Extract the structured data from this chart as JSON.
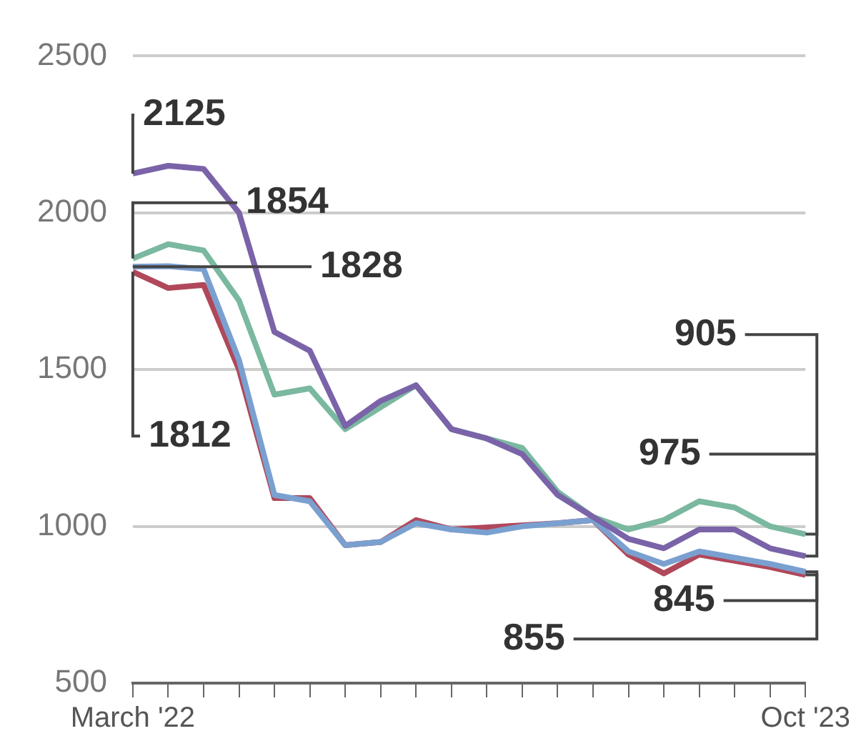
{
  "chart_data": {
    "type": "line",
    "categories": [
      "March '22",
      null,
      null,
      null,
      null,
      null,
      null,
      null,
      null,
      null,
      null,
      null,
      null,
      null,
      null,
      null,
      null,
      null,
      null,
      "Oct '23"
    ],
    "series": [
      {
        "color": "#7a63a8",
        "values": [
          2125,
          2150,
          2140,
          2000,
          1620,
          1560,
          1320,
          1400,
          1450,
          1310,
          1280,
          1230,
          1100,
          1030,
          960,
          930,
          990,
          990,
          930,
          905
        ]
      },
      {
        "color": "#7ab8a0",
        "values": [
          1854,
          1900,
          1880,
          1720,
          1420,
          1440,
          1310,
          1380,
          1450,
          1310,
          1280,
          1250,
          1110,
          1030,
          990,
          1020,
          1080,
          1060,
          1000,
          975
        ]
      },
      {
        "color": "#7aa0d0",
        "values": [
          1828,
          1830,
          1820,
          1530,
          1100,
          1080,
          940,
          950,
          1010,
          990,
          980,
          1000,
          1010,
          1020,
          920,
          880,
          920,
          900,
          880,
          855
        ]
      },
      {
        "color": "#b0485a",
        "values": [
          1812,
          1760,
          1770,
          1500,
          1090,
          1090,
          940,
          950,
          1020,
          990,
          null,
          null,
          1010,
          1020,
          910,
          850,
          910,
          890,
          870,
          845
        ]
      }
    ],
    "ylim": [
      500,
      2500
    ],
    "yticks": [
      500,
      1000,
      1500,
      2000,
      2500
    ],
    "grid": "y",
    "legend": false,
    "marker": "none",
    "line_style": "solid",
    "annotations": [
      {
        "text": "2125",
        "x": "March '22",
        "y": 2125
      },
      {
        "text": "1854",
        "x": "March '22",
        "y": 1854
      },
      {
        "text": "1828",
        "x": "March '22",
        "y": 1828
      },
      {
        "text": "1812",
        "x": "March '22",
        "y": 1812
      },
      {
        "text": "905",
        "x": "Oct '23",
        "y": 905
      },
      {
        "text": "975",
        "x": "Oct '23",
        "y": 975
      },
      {
        "text": "845",
        "x": "Oct '23",
        "y": 845
      },
      {
        "text": "855",
        "x": "Oct '23",
        "y": 855
      }
    ]
  }
}
